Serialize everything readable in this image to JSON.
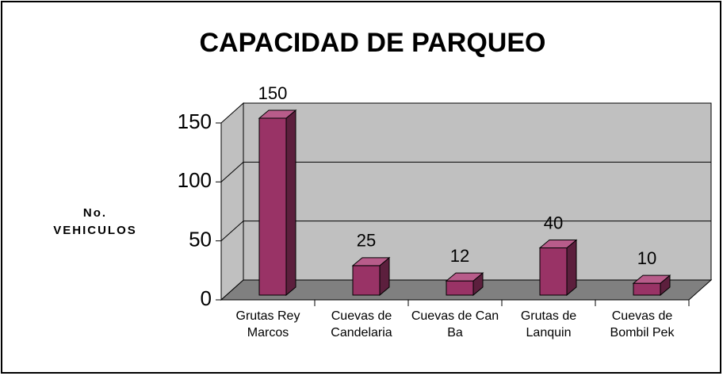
{
  "chart_data": {
    "type": "bar3d",
    "title": "CAPACIDAD DE PARQUEO",
    "y_label": "No. VEHICULOS",
    "categories": [
      "Grutas Rey Marcos",
      "Cuevas de Candelaria",
      "Cuevas de Can Ba",
      "Grutas de Lanquin",
      "Cuevas de Bombil Pek"
    ],
    "values": [
      150,
      25,
      12,
      40,
      10
    ],
    "color": "#993366",
    "ylim": [
      0,
      150
    ],
    "yticks": [
      0,
      50,
      100,
      150
    ],
    "grid": true
  }
}
